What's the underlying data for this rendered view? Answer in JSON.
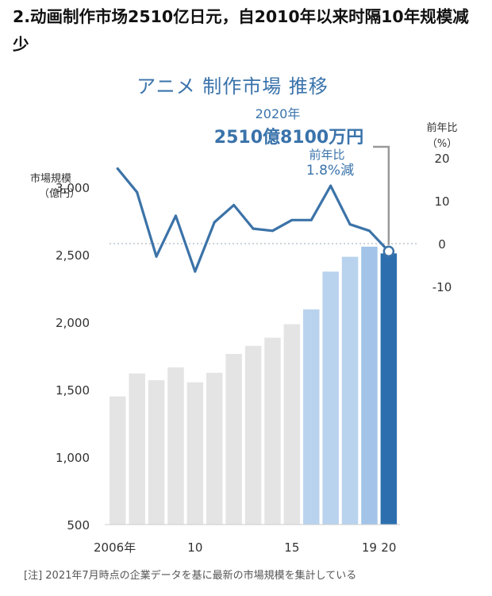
{
  "heading": "2.动画制作市场2510亿日元，自2010年以来时隔10年规模减少",
  "footnote": "[注] 2021年7月時点の企業データを基に最新の市場規模を集計している",
  "colors": {
    "bar_gray": "#e4e4e4",
    "bar_light_blue": "#b9d3ee",
    "bar_mid_blue": "#a3c4e8",
    "bar_dark_blue": "#2d6fae",
    "line": "#3c73a8",
    "title_blue": "#3a73ab",
    "axis_text": "#333333",
    "bracket": "#999999"
  },
  "chart_data": {
    "type": "bar+line",
    "title": "アニメ 制作市場 推移",
    "categories": [
      "2006",
      "2007",
      "2008",
      "2009",
      "2010",
      "2011",
      "2012",
      "2013",
      "2014",
      "2015",
      "2016",
      "2017",
      "2018",
      "2019",
      "2020"
    ],
    "x_tick_labels": [
      {
        "category": "2006",
        "label": "2006年"
      },
      {
        "category": "2010",
        "label": "10"
      },
      {
        "category": "2015",
        "label": "15"
      },
      {
        "category": "2019",
        "label": "19"
      },
      {
        "category": "2020",
        "label": "20"
      }
    ],
    "bar_series": {
      "name": "市場規模",
      "unit_label": [
        "市場規模",
        "（億円）"
      ],
      "values": [
        1450,
        1620,
        1570,
        1665,
        1555,
        1625,
        1765,
        1825,
        1885,
        1985,
        2095,
        2375,
        2485,
        2560,
        2510
      ],
      "color_groups": [
        "gray",
        "gray",
        "gray",
        "gray",
        "gray",
        "gray",
        "gray",
        "gray",
        "gray",
        "gray",
        "light",
        "light",
        "light",
        "mid",
        "dark"
      ],
      "ylim": [
        500,
        3300
      ],
      "yticks": [
        {
          "v": 500,
          "label": "500"
        },
        {
          "v": 1000,
          "label": "1,000"
        },
        {
          "v": 1500,
          "label": "1,500"
        },
        {
          "v": 2000,
          "label": "2,000"
        },
        {
          "v": 2500,
          "label": "2,500"
        },
        {
          "v": 3000,
          "label": "3,000"
        }
      ]
    },
    "line_series": {
      "name": "前年比",
      "unit_label": [
        "前年比",
        "（%）"
      ],
      "values": [
        17.5,
        12,
        -3,
        6.5,
        -6.5,
        5,
        9,
        3.5,
        3,
        5.5,
        5.5,
        13.5,
        4.5,
        3,
        -1.8
      ],
      "ylim": [
        -15,
        26
      ],
      "yticks": [
        {
          "v": 20,
          "label": "20"
        },
        {
          "v": 10,
          "label": "10"
        },
        {
          "v": 0,
          "label": "0"
        },
        {
          "v": -10,
          "label": "-10"
        }
      ],
      "zero_line": true
    },
    "annotation": {
      "year_label": "2020年",
      "value_label": "2510億8100万円",
      "change_label_1": "前年比",
      "change_label_2": "1.8%減"
    },
    "grid": false
  }
}
